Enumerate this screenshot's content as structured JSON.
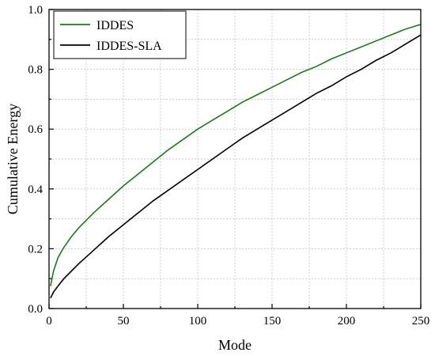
{
  "chart_data": {
    "type": "line",
    "xlabel": "Mode",
    "ylabel": "Cumulative Energy",
    "xlim": [
      0,
      250
    ],
    "ylim": [
      0,
      1.0
    ],
    "xticks": [
      0,
      50,
      100,
      150,
      200,
      250
    ],
    "xtick_labels": [
      "0",
      "50",
      "100",
      "150",
      "200",
      "250"
    ],
    "yticks": [
      0.0,
      0.2,
      0.4,
      0.6,
      0.8,
      1.0
    ],
    "ytick_labels": [
      "0.0",
      "0.2",
      "0.4",
      "0.6",
      "0.8",
      "1.0"
    ],
    "grid": true,
    "legend_position": "top-left",
    "series": [
      {
        "name": "IDDES",
        "color": "#1a7a1a",
        "x": [
          1,
          3,
          6,
          10,
          15,
          20,
          30,
          40,
          50,
          60,
          70,
          80,
          90,
          100,
          110,
          120,
          130,
          140,
          150,
          160,
          170,
          180,
          190,
          200,
          210,
          220,
          230,
          240,
          250
        ],
        "y": [
          0.075,
          0.125,
          0.17,
          0.205,
          0.24,
          0.27,
          0.32,
          0.365,
          0.41,
          0.45,
          0.49,
          0.53,
          0.565,
          0.6,
          0.63,
          0.66,
          0.69,
          0.715,
          0.74,
          0.765,
          0.79,
          0.81,
          0.835,
          0.855,
          0.875,
          0.895,
          0.915,
          0.935,
          0.95
        ]
      },
      {
        "name": "IDDES-SLA",
        "color": "#000000",
        "x": [
          1,
          3,
          6,
          10,
          15,
          20,
          30,
          40,
          50,
          60,
          70,
          80,
          90,
          100,
          110,
          120,
          130,
          140,
          150,
          160,
          170,
          180,
          190,
          200,
          210,
          220,
          230,
          240,
          250
        ],
        "y": [
          0.035,
          0.055,
          0.075,
          0.1,
          0.125,
          0.15,
          0.195,
          0.24,
          0.28,
          0.32,
          0.36,
          0.395,
          0.43,
          0.465,
          0.5,
          0.535,
          0.57,
          0.6,
          0.63,
          0.66,
          0.69,
          0.72,
          0.745,
          0.775,
          0.8,
          0.83,
          0.855,
          0.885,
          0.915
        ]
      }
    ]
  }
}
